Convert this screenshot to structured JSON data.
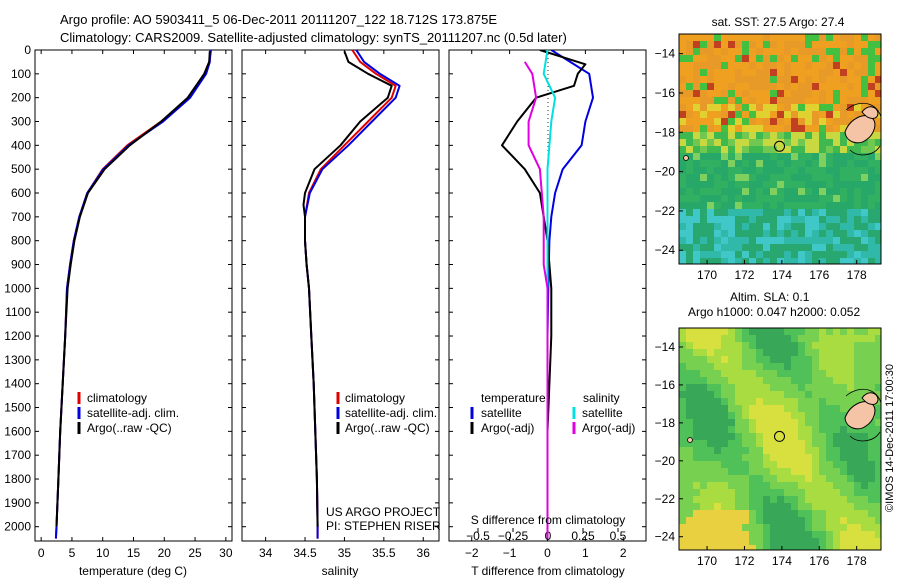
{
  "header": {
    "line1": "Argo profile: AO 5903411_5 06-Dec-2011 20111207_122 18.712S 173.875E",
    "line2": "Climatology: CARS2009. Satellite-adjusted climatology: synTS_20111207.nc (0.5d later)"
  },
  "colors": {
    "climatology": "#e00000",
    "satellite": "#0000e0",
    "argo": "#000000",
    "sal_satellite": "#00e0e0",
    "sal_argo": "#e000e0"
  },
  "chart_data": [
    {
      "type": "line",
      "id": "temperature",
      "xlabel": "temperature (deg C)",
      "xlim": [
        -1,
        31
      ],
      "ylim": [
        2060,
        0
      ],
      "xticks": [
        0,
        5,
        10,
        15,
        20,
        25,
        30
      ],
      "yticks": [
        0,
        100,
        200,
        300,
        400,
        500,
        600,
        700,
        800,
        900,
        1000,
        1100,
        1200,
        1300,
        1400,
        1500,
        1600,
        1700,
        1800,
        1900,
        2000
      ],
      "legend": [
        "climatology",
        "satellite-adj. clim.",
        "Argo(..raw -QC)"
      ],
      "series": [
        {
          "name": "climatology",
          "color": "#e00000",
          "points": [
            [
              27.6,
              0
            ],
            [
              27.3,
              50
            ],
            [
              26.5,
              100
            ],
            [
              24,
              200
            ],
            [
              19.5,
              300
            ],
            [
              14,
              400
            ],
            [
              10,
              500
            ],
            [
              7.5,
              600
            ],
            [
              6.2,
              700
            ],
            [
              5.3,
              800
            ],
            [
              4.7,
              900
            ],
            [
              4.2,
              1000
            ],
            [
              3.9,
              1200
            ],
            [
              3.5,
              1400
            ],
            [
              3.1,
              1600
            ],
            [
              2.8,
              1800
            ],
            [
              2.5,
              2000
            ],
            [
              2.4,
              2050
            ]
          ]
        },
        {
          "name": "satellite-adj. clim.",
          "color": "#0000e0",
          "points": [
            [
              27.5,
              0
            ],
            [
              27.4,
              50
            ],
            [
              26.8,
              100
            ],
            [
              24.2,
              200
            ],
            [
              19.8,
              300
            ],
            [
              14.2,
              400
            ],
            [
              10.1,
              500
            ],
            [
              7.5,
              600
            ],
            [
              6.2,
              700
            ],
            [
              5.3,
              800
            ],
            [
              4.7,
              900
            ],
            [
              4.2,
              1000
            ],
            [
              3.9,
              1200
            ],
            [
              3.5,
              1400
            ],
            [
              3.1,
              1600
            ],
            [
              2.8,
              1800
            ],
            [
              2.5,
              2000
            ],
            [
              2.4,
              2050
            ]
          ]
        },
        {
          "name": "Argo(..raw -QC)",
          "color": "#000000",
          "points": [
            [
              27.4,
              5
            ],
            [
              27.3,
              50
            ],
            [
              26.5,
              100
            ],
            [
              23.8,
              200
            ],
            [
              19.5,
              300
            ],
            [
              14.4,
              400
            ],
            [
              10.3,
              500
            ],
            [
              7.6,
              600
            ],
            [
              6.3,
              700
            ],
            [
              5.4,
              800
            ],
            [
              4.8,
              900
            ],
            [
              4.3,
              1000
            ],
            [
              3.9,
              1200
            ],
            [
              3.5,
              1400
            ],
            [
              3.1,
              1600
            ],
            [
              2.8,
              1800
            ],
            [
              2.5,
              2000
            ]
          ]
        }
      ]
    },
    {
      "type": "line",
      "id": "salinity",
      "xlabel": "salinity",
      "xlim": [
        33.7,
        36.2
      ],
      "ylim": [
        2060,
        0
      ],
      "xticks": [
        34,
        34.5,
        35,
        35.5,
        36
      ],
      "xticklabels": [
        "34",
        "34.5",
        "35",
        "35.5",
        "36"
      ],
      "legend": [
        "climatology",
        "satellite-adj. clim.",
        "Argo(..raw -QC)"
      ],
      "series": [
        {
          "name": "climatology",
          "color": "#e00000",
          "points": [
            [
              35.1,
              0
            ],
            [
              35.2,
              50
            ],
            [
              35.4,
              100
            ],
            [
              35.65,
              150
            ],
            [
              35.6,
              200
            ],
            [
              35.3,
              300
            ],
            [
              35.0,
              400
            ],
            [
              34.7,
              500
            ],
            [
              34.55,
              600
            ],
            [
              34.5,
              700
            ],
            [
              34.5,
              800
            ],
            [
              34.52,
              900
            ],
            [
              34.55,
              1000
            ],
            [
              34.58,
              1200
            ],
            [
              34.61,
              1400
            ],
            [
              34.63,
              1600
            ],
            [
              34.65,
              1800
            ],
            [
              34.66,
              2000
            ],
            [
              34.66,
              2050
            ]
          ]
        },
        {
          "name": "satellite-adj. clim.",
          "color": "#0000e0",
          "points": [
            [
              35.15,
              0
            ],
            [
              35.25,
              50
            ],
            [
              35.45,
              100
            ],
            [
              35.7,
              150
            ],
            [
              35.65,
              200
            ],
            [
              35.35,
              300
            ],
            [
              35.05,
              400
            ],
            [
              34.72,
              500
            ],
            [
              34.56,
              600
            ],
            [
              34.5,
              700
            ],
            [
              34.5,
              800
            ],
            [
              34.52,
              900
            ],
            [
              34.55,
              1000
            ],
            [
              34.58,
              1200
            ],
            [
              34.61,
              1400
            ],
            [
              34.63,
              1600
            ],
            [
              34.65,
              1800
            ],
            [
              34.66,
              2000
            ],
            [
              34.66,
              2050
            ]
          ]
        },
        {
          "name": "Argo(..raw -QC)",
          "color": "#000000",
          "points": [
            [
              35.0,
              5
            ],
            [
              35.05,
              50
            ],
            [
              35.3,
              100
            ],
            [
              35.6,
              150
            ],
            [
              35.55,
              200
            ],
            [
              35.2,
              300
            ],
            [
              34.95,
              400
            ],
            [
              34.62,
              500
            ],
            [
              34.5,
              600
            ],
            [
              34.48,
              650
            ],
            [
              34.5,
              700
            ],
            [
              34.5,
              800
            ],
            [
              34.52,
              900
            ],
            [
              34.55,
              1000
            ],
            [
              34.58,
              1200
            ],
            [
              34.61,
              1400
            ],
            [
              34.63,
              1600
            ],
            [
              34.65,
              1800
            ],
            [
              34.66,
              2000
            ]
          ]
        }
      ],
      "annotations": [
        "US ARGO PROJECT",
        "PI: STEPHEN RISER"
      ]
    },
    {
      "type": "line",
      "id": "differences",
      "xlabel": "T difference from climatology",
      "xlabel_top": "S difference from climatology",
      "xlim": [
        -2.6,
        2.6
      ],
      "ylim": [
        2060,
        0
      ],
      "xticks": [
        -2,
        -1,
        0,
        1,
        2
      ],
      "xticklabels": [
        "−2",
        "−1",
        "0",
        "1",
        "2"
      ],
      "sticks": [
        -0.5,
        -0.25,
        0,
        0.25,
        0.5
      ],
      "sticklabels": [
        "−0.5",
        "−0.25",
        "0",
        "0.25",
        "0.5"
      ],
      "legend_titles": [
        "temperature",
        "salinity"
      ],
      "legend": [
        "satellite",
        "Argo(-adj)",
        "satellite",
        "Argo(-adj)"
      ],
      "series": [
        {
          "name": "satellite",
          "color": "#0000e0",
          "points": [
            [
              0.1,
              0
            ],
            [
              0.6,
              50
            ],
            [
              1.1,
              100
            ],
            [
              1.2,
              200
            ],
            [
              1.0,
              300
            ],
            [
              0.9,
              400
            ],
            [
              0.4,
              500
            ],
            [
              0.2,
              600
            ],
            [
              0.1,
              700
            ],
            [
              0.05,
              800
            ],
            [
              0.02,
              1000
            ],
            [
              0,
              1200
            ],
            [
              0,
              2050
            ]
          ]
        },
        {
          "name": "Argo(-adj)",
          "color": "#000000",
          "points": [
            [
              -0.2,
              0
            ],
            [
              1.0,
              60
            ],
            [
              0.8,
              100
            ],
            [
              0.7,
              150
            ],
            [
              -0.3,
              200
            ],
            [
              -0.8,
              300
            ],
            [
              -1.2,
              400
            ],
            [
              -0.6,
              500
            ],
            [
              -0.2,
              600
            ],
            [
              -0.1,
              700
            ],
            [
              0,
              800
            ],
            [
              0.1,
              1000
            ],
            [
              0.1,
              1200
            ],
            [
              0.05,
              1400
            ],
            [
              0,
              1600
            ],
            [
              0,
              1800
            ],
            [
              0,
              2000
            ]
          ]
        },
        {
          "name": "satellite",
          "color": "#00e0e0",
          "points": [
            [
              0,
              0
            ],
            [
              -0.1,
              100
            ],
            [
              0.2,
              200
            ],
            [
              0.1,
              300
            ],
            [
              0,
              500
            ],
            [
              0,
              800
            ],
            [
              0,
              2050
            ]
          ]
        },
        {
          "name": "Argo(-adj)",
          "color": "#e000e0",
          "points": [
            [
              -0.6,
              50
            ],
            [
              -0.4,
              100
            ],
            [
              -0.3,
              200
            ],
            [
              -0.5,
              300
            ],
            [
              -0.5,
              400
            ],
            [
              -0.2,
              500
            ],
            [
              -0.1,
              700
            ],
            [
              -0.1,
              800
            ],
            [
              -0.1,
              900
            ],
            [
              0,
              1000
            ],
            [
              0,
              2050
            ]
          ]
        }
      ]
    },
    {
      "type": "heatmap",
      "id": "sst-map",
      "title": "sat. SST: 27.5 Argo: 27.4",
      "xlim": [
        168.5,
        179.3
      ],
      "ylim": [
        -24.7,
        -13
      ],
      "xticks": [
        170,
        172,
        174,
        176,
        178
      ],
      "yticks": [
        -14,
        -16,
        -18,
        -20,
        -22,
        -24
      ],
      "marker": [
        173.875,
        -18.712
      ]
    },
    {
      "type": "heatmap",
      "id": "sla-map",
      "title": "Altim. SLA: 0.1",
      "subtitle": "Argo h1000: 0.047 h2000: 0.052",
      "xlim": [
        168.5,
        179.3
      ],
      "ylim": [
        -24.7,
        -13
      ],
      "xticks": [
        170,
        172,
        174,
        176,
        178
      ],
      "yticks": [
        -14,
        -16,
        -18,
        -20,
        -22,
        -24
      ],
      "marker": [
        173.875,
        -18.712
      ]
    }
  ],
  "credit": "©IMOS 14-Dec-2011 17:00:30"
}
